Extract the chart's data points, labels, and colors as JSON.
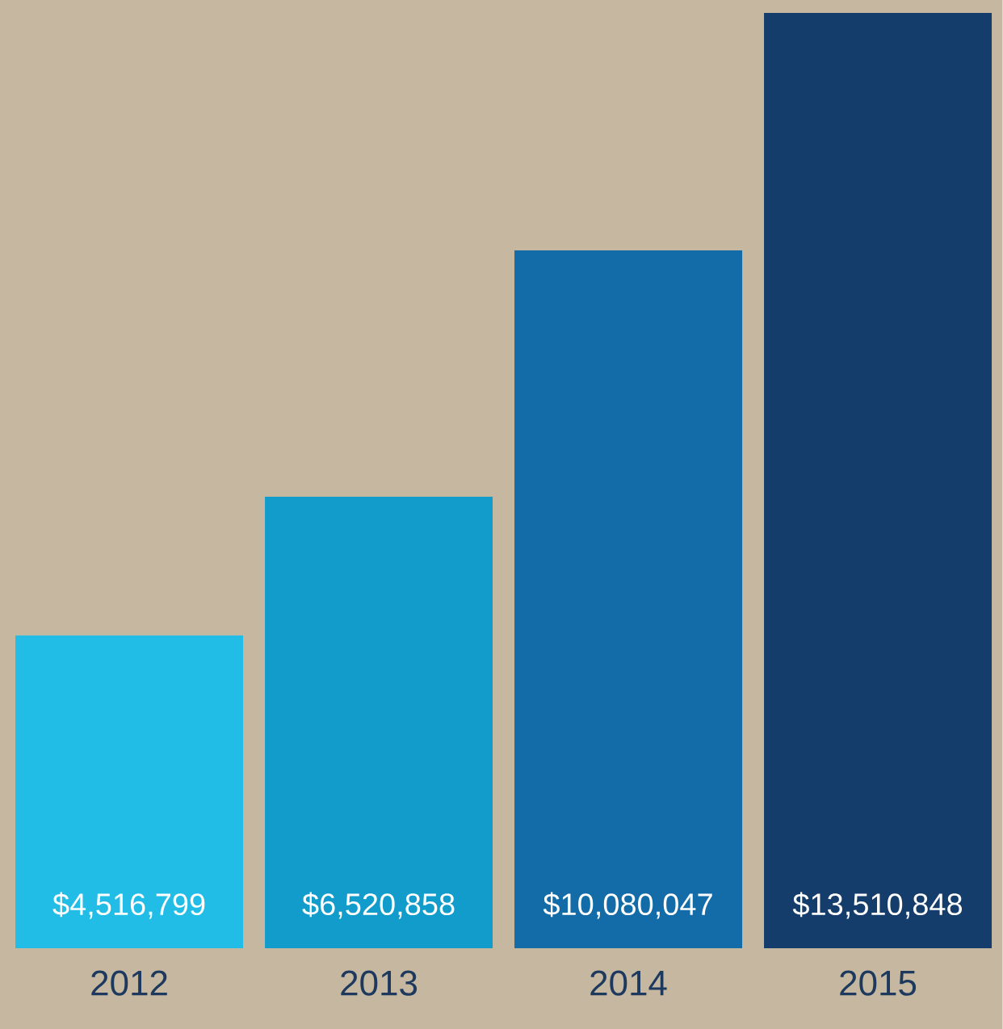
{
  "chart_data": {
    "type": "bar",
    "categories": [
      "2012",
      "2013",
      "2014",
      "2015"
    ],
    "values": [
      4516799,
      6520858,
      10080047,
      13510848
    ],
    "colors": [
      "#22bde6",
      "#129ccc",
      "#136ca8",
      "#153d6b"
    ],
    "value_labels": [
      "$4,516,799",
      "$6,520,858",
      "$10,080,047",
      "$13,510,848"
    ],
    "tick_labels": "x"
  }
}
